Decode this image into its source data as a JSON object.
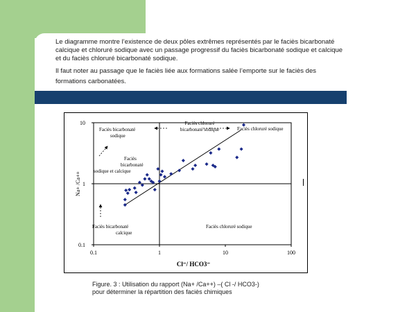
{
  "intro": {
    "paragraph1": "Le diagramme montre l’existence de deux pôles extrêmes représentés par le faciès bicarbonaté calcique et chloruré sodique avec un passage progressif du faciès bicarbonaté sodique et calcique et du faciès chloruré bicarbonaté sodique.",
    "paragraph2": "Il faut noter au passage que le faciès liée aux formations salée l’emporte sur le faciès des formations carbonatées."
  },
  "caption": {
    "line1": "Figure. 3   : Utilisation du rapport (Na+ /Ca++) –( Cl -/ HCO3-)",
    "line2": "pour déterminer la répartition des faciès chimiques"
  },
  "chart_data": {
    "type": "scatter",
    "xlabel": "Cl⁻/ HCO3⁻",
    "ylabel": "Na+ /Ca++",
    "xscale": "log",
    "yscale": "log",
    "xlim": [
      0.1,
      100
    ],
    "ylim": [
      0.1,
      10
    ],
    "x_ticks": [
      "0.1",
      "1",
      "10",
      "100"
    ],
    "y_ticks": [
      "10",
      "1",
      "0.1"
    ],
    "divider_lines": {
      "x": 1,
      "y": 1
    },
    "trend_line": [
      [
        0.3,
        0.45
      ],
      [
        17,
        7.5
      ]
    ],
    "points": [
      [
        0.3,
        0.45
      ],
      [
        0.3,
        0.55
      ],
      [
        0.31,
        0.78
      ],
      [
        0.33,
        0.7
      ],
      [
        0.35,
        0.8
      ],
      [
        0.42,
        0.85
      ],
      [
        0.44,
        0.72
      ],
      [
        0.5,
        1.05
      ],
      [
        0.55,
        0.95
      ],
      [
        0.6,
        1.2
      ],
      [
        0.65,
        1.4
      ],
      [
        0.7,
        1.2
      ],
      [
        0.75,
        1.1
      ],
      [
        0.8,
        1.05
      ],
      [
        0.85,
        0.8
      ],
      [
        0.95,
        1.75
      ],
      [
        1.0,
        1.1
      ],
      [
        1.05,
        1.4
      ],
      [
        1.1,
        1.6
      ],
      [
        1.2,
        1.3
      ],
      [
        1.5,
        1.45
      ],
      [
        2.0,
        1.65
      ],
      [
        2.3,
        2.4
      ],
      [
        3.2,
        1.75
      ],
      [
        3.5,
        2.0
      ],
      [
        5.2,
        2.1
      ],
      [
        6.0,
        3.2
      ],
      [
        6.5,
        2.0
      ],
      [
        7.0,
        1.9
      ],
      [
        8.0,
        3.7
      ],
      [
        15.0,
        2.7
      ],
      [
        17.5,
        3.7
      ],
      [
        19.0,
        9.2
      ]
    ],
    "annotations": {
      "bicarb_sodique": [
        "Faciès bicarbonaté",
        "sodique"
      ],
      "chlorure_bicarb": [
        "Faciès chloruré",
        "bicarbonaté sodique"
      ],
      "chlorure_sodique_top": "Faciès chloruré sodique",
      "bicarb_sodique_calcique": [
        "Faciès",
        "bicarbonaté",
        "sodique et calcique"
      ],
      "bicarb_calcique": [
        "Faciès  bicarbonaté",
        "calcique"
      ],
      "chlorure_sodique_bottom": "Faciès chloruré sodique"
    }
  }
}
